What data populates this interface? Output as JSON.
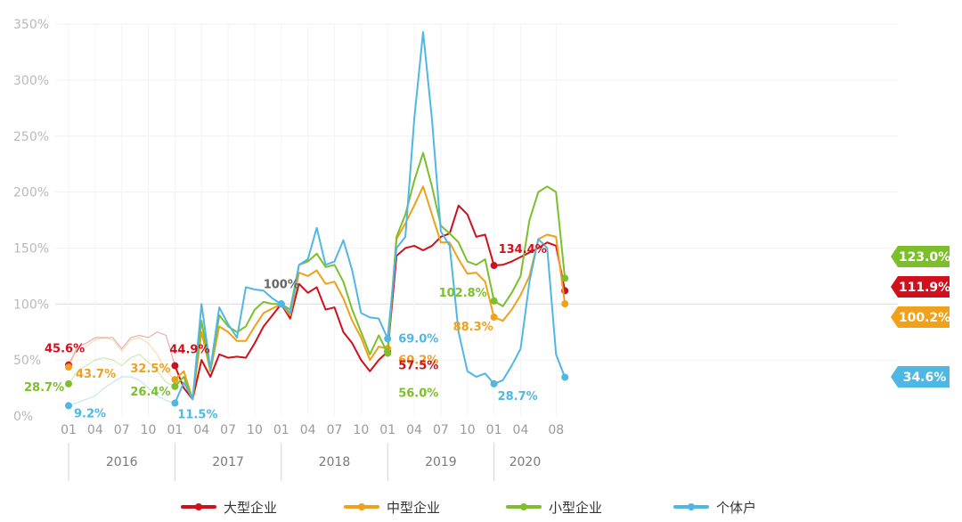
{
  "chart_data": {
    "type": "line",
    "title": "",
    "xlabel": "",
    "ylabel": "",
    "ylim": [
      0,
      350
    ],
    "y_ticks": [
      "0%",
      "50%",
      "100%",
      "150%",
      "200%",
      "250%",
      "300%",
      "350%"
    ],
    "x_ticks": [
      {
        "label": "01",
        "idx": 0
      },
      {
        "label": "04",
        "idx": 3
      },
      {
        "label": "07",
        "idx": 6
      },
      {
        "label": "10",
        "idx": 9
      },
      {
        "label": "01",
        "idx": 12
      },
      {
        "label": "04",
        "idx": 15
      },
      {
        "label": "07",
        "idx": 18
      },
      {
        "label": "10",
        "idx": 21
      },
      {
        "label": "01",
        "idx": 24
      },
      {
        "label": "04",
        "idx": 27
      },
      {
        "label": "07",
        "idx": 30
      },
      {
        "label": "10",
        "idx": 33
      },
      {
        "label": "01",
        "idx": 36
      },
      {
        "label": "04",
        "idx": 39
      },
      {
        "label": "07",
        "idx": 42
      },
      {
        "label": "10",
        "idx": 45
      },
      {
        "label": "01",
        "idx": 48
      },
      {
        "label": "04",
        "idx": 51
      },
      {
        "label": "08",
        "idx": 55
      }
    ],
    "years": [
      {
        "label": "2016",
        "start": 0,
        "end": 12
      },
      {
        "label": "2017",
        "start": 12,
        "end": 24
      },
      {
        "label": "2018",
        "start": 24,
        "end": 36
      },
      {
        "label": "2019",
        "start": 36,
        "end": 48
      },
      {
        "label": "2020",
        "start": 48,
        "end": 55
      }
    ],
    "baseline_label": "100%",
    "series": [
      {
        "name": "大型企业",
        "color": "#d0101d",
        "values": [
          45.6,
          62,
          65,
          70,
          70,
          70,
          60,
          70,
          72,
          70,
          75,
          72,
          44.9,
          25,
          15,
          50,
          35,
          55,
          52,
          53,
          52,
          65,
          80,
          90,
          100,
          87,
          118,
          110,
          115,
          95,
          97,
          75,
          65,
          50,
          40,
          50,
          57.5,
          143,
          150,
          152,
          148,
          152,
          160,
          163,
          188,
          180,
          160,
          162,
          134.4,
          135,
          138,
          142,
          146,
          150,
          155,
          152,
          111.9
        ],
        "dashed_to": 12,
        "points": [
          0,
          12,
          24,
          36,
          48,
          56
        ]
      },
      {
        "name": "中型企业",
        "color": "#f0a01a",
        "values": [
          43.7,
          60,
          62,
          68,
          70,
          68,
          58,
          68,
          70,
          65,
          55,
          40,
          32.5,
          40,
          15,
          75,
          40,
          80,
          75,
          67,
          67,
          80,
          92,
          96,
          100,
          90,
          128,
          125,
          130,
          118,
          120,
          105,
          85,
          70,
          50,
          62,
          60.2,
          158,
          172,
          188,
          205,
          180,
          155,
          155,
          140,
          127,
          128,
          120,
          88.3,
          85,
          95,
          108,
          125,
          158,
          162,
          160,
          100.2
        ],
        "dashed_to": 12,
        "points": [
          0,
          12,
          24,
          36,
          48,
          56
        ]
      },
      {
        "name": "小型企业",
        "color": "#7cbf2b",
        "values": [
          28.7,
          40,
          45,
          50,
          52,
          50,
          45,
          52,
          55,
          48,
          40,
          30,
          26.4,
          35,
          15,
          85,
          40,
          90,
          80,
          75,
          80,
          95,
          102,
          100,
          100,
          95,
          135,
          138,
          145,
          133,
          135,
          120,
          95,
          75,
          55,
          72,
          56.0,
          160,
          180,
          210,
          235,
          205,
          170,
          163,
          155,
          138,
          135,
          140,
          102.8,
          98,
          110,
          125,
          175,
          200,
          205,
          200,
          123.0
        ],
        "dashed_to": 12,
        "points": [
          0,
          12,
          24,
          36,
          48,
          56
        ]
      },
      {
        "name": "个体户",
        "color": "#4fb7e3",
        "values": [
          9.2,
          12,
          15,
          18,
          25,
          30,
          35,
          35,
          32,
          25,
          18,
          14,
          11.5,
          30,
          15,
          100,
          42,
          97,
          82,
          70,
          115,
          113,
          112,
          105,
          100,
          92,
          135,
          140,
          168,
          135,
          138,
          157,
          130,
          92,
          88,
          87,
          69.0,
          150,
          160,
          265,
          343,
          265,
          165,
          152,
          75,
          40,
          35,
          38,
          28.7,
          32,
          45,
          60,
          120,
          158,
          150,
          55,
          34.6
        ],
        "dashed_to": 12,
        "points": [
          0,
          12,
          24,
          36,
          48,
          56
        ]
      }
    ],
    "annotations": [
      {
        "series": 0,
        "idx": 0,
        "text": "45.6%"
      },
      {
        "series": 1,
        "idx": 0,
        "text": "43.7%"
      },
      {
        "series": 2,
        "idx": 0,
        "text": "28.7%"
      },
      {
        "series": 3,
        "idx": 0,
        "text": "9.2%"
      },
      {
        "series": 0,
        "idx": 12,
        "text": "44.9%"
      },
      {
        "series": 1,
        "idx": 12,
        "text": "32.5%"
      },
      {
        "series": 2,
        "idx": 12,
        "text": "26.4%"
      },
      {
        "series": 3,
        "idx": 12,
        "text": "11.5%"
      },
      {
        "series": 3,
        "idx": 36,
        "text": "69.0%"
      },
      {
        "series": 1,
        "idx": 36,
        "text": "60.2%"
      },
      {
        "series": 0,
        "idx": 36,
        "text": "57.5%"
      },
      {
        "series": 2,
        "idx": 36,
        "text": "56.0%"
      },
      {
        "series": 0,
        "idx": 48,
        "text": "134.4%"
      },
      {
        "series": 2,
        "idx": 48,
        "text": "102.8%"
      },
      {
        "series": 1,
        "idx": 48,
        "text": "88.3%"
      },
      {
        "series": 3,
        "idx": 48,
        "text": "28.7%"
      }
    ],
    "end_labels": [
      {
        "series": 2,
        "text": "123.0%"
      },
      {
        "series": 0,
        "text": "111.9%"
      },
      {
        "series": 1,
        "text": "100.2%"
      },
      {
        "series": 3,
        "text": "34.6%"
      }
    ],
    "legend": [
      "大型企业",
      "中型企业",
      "小型企业",
      "个体户"
    ]
  }
}
